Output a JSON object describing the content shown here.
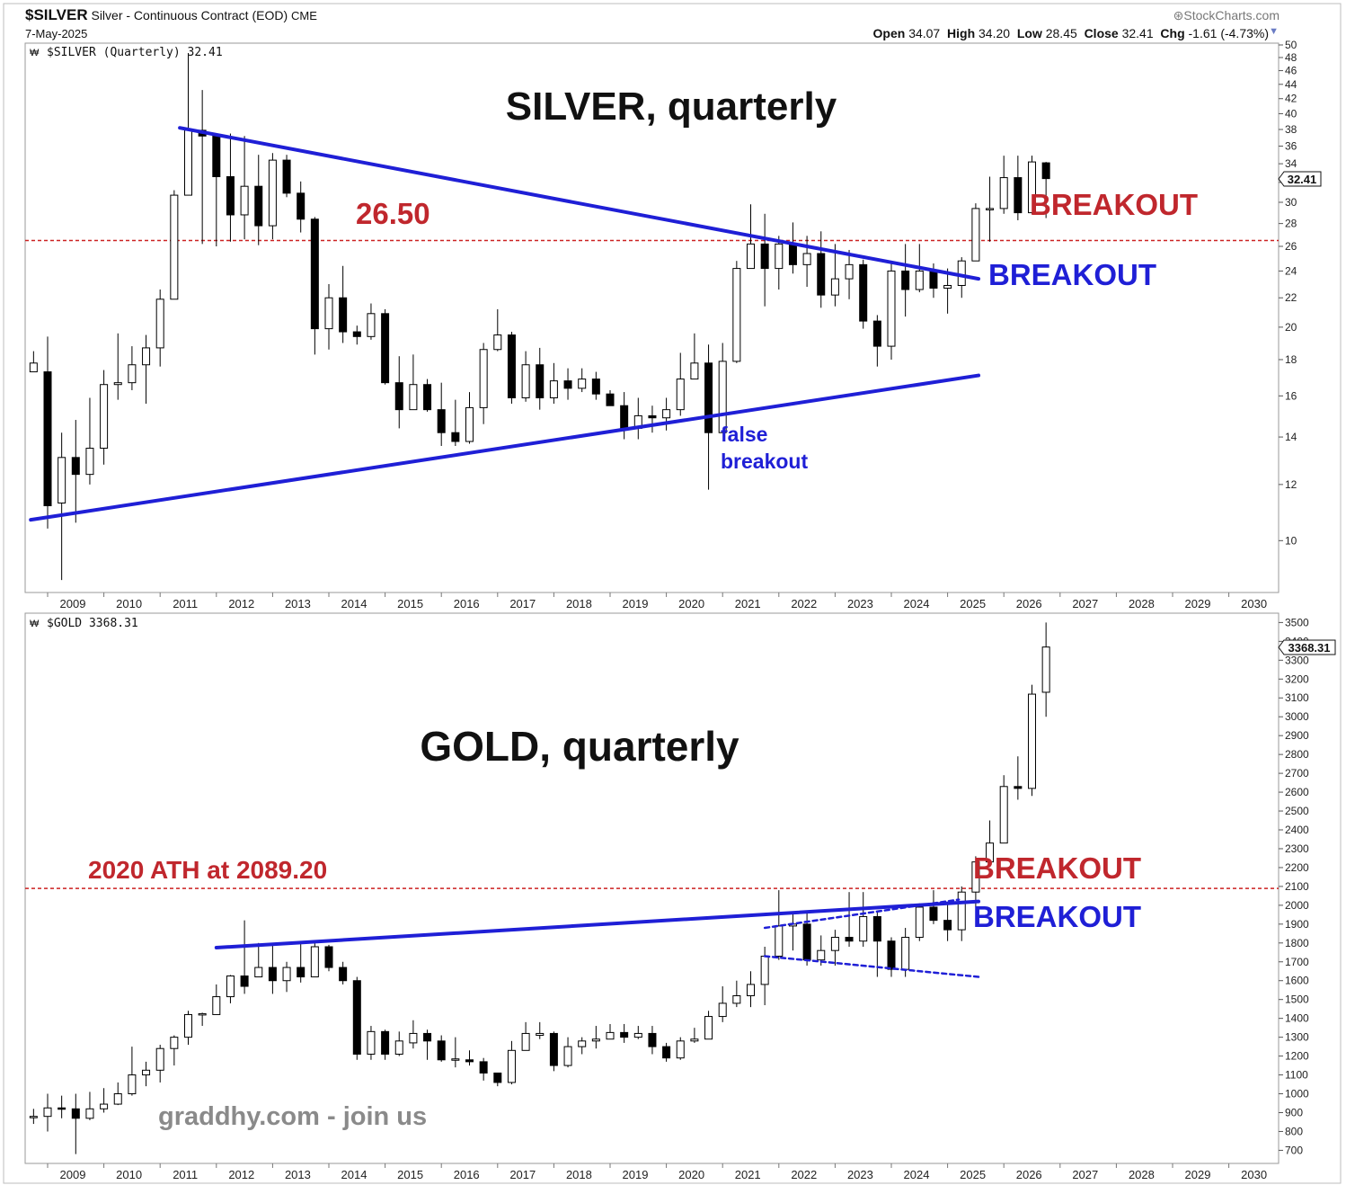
{
  "header": {
    "symbol": "$SILVER",
    "description": "Silver - Continuous Contract (EOD)",
    "exchange": "CME",
    "date": "7-May-2025",
    "brand": "StockCharts.com",
    "open_label": "Open",
    "open": "34.07",
    "high_label": "High",
    "high": "34.20",
    "low_label": "Low",
    "low": "28.45",
    "close_label": "Close",
    "close": "32.41",
    "chg_label": "Chg",
    "chg": "-1.61 (-4.73%)"
  },
  "colors": {
    "up_body": "#ffffff",
    "down_body": "#000000",
    "trendline": "#1f1fd6",
    "level_line": "#cc2222",
    "breakout_red": "#c0272d",
    "breakout_blue": "#1f1fd6",
    "frame": "#c8c8c8",
    "watermark": "#8a8a8a"
  },
  "x_axis_years": [
    "2009",
    "2010",
    "2011",
    "2012",
    "2013",
    "2014",
    "2015",
    "2016",
    "2017",
    "2018",
    "2019",
    "2020",
    "2021",
    "2022",
    "2023",
    "2024",
    "2025",
    "2026",
    "2027",
    "2028",
    "2029",
    "2030"
  ],
  "chart_data": [
    {
      "type": "candlestick",
      "panel": "silver",
      "legend": "$SILVER (Quarterly) 32.41",
      "title": "SILVER, quarterly",
      "last_value": "32.41",
      "yscale": "log",
      "ylim": [
        8.5,
        50
      ],
      "yticks": [
        10,
        12,
        14,
        16,
        18,
        20,
        22,
        24,
        26,
        28,
        30,
        32,
        34,
        36,
        38,
        40,
        42,
        44,
        46,
        48,
        50
      ],
      "candles": [
        [
          2008.75,
          17.3,
          17.8,
          17.3,
          18.5
        ],
        [
          2009.0,
          17.3,
          11.2,
          19.4,
          10.4
        ],
        [
          2009.25,
          11.3,
          13.1,
          14.2,
          8.8
        ],
        [
          2009.5,
          13.1,
          12.4,
          14.8,
          10.6
        ],
        [
          2009.75,
          12.4,
          13.5,
          15.9,
          12.0
        ],
        [
          2010.0,
          13.5,
          16.6,
          17.4,
          12.8
        ],
        [
          2010.25,
          16.6,
          16.7,
          19.6,
          15.8
        ],
        [
          2010.5,
          16.7,
          17.7,
          18.8,
          16.3
        ],
        [
          2010.75,
          17.7,
          18.7,
          19.5,
          15.6
        ],
        [
          2011.0,
          18.7,
          21.9,
          22.6,
          17.6
        ],
        [
          2011.25,
          21.9,
          30.7,
          31.2,
          21.9
        ],
        [
          2011.5,
          30.7,
          37.9,
          48.7,
          31.0
        ],
        [
          2011.75,
          37.9,
          37.2,
          43.2,
          26.2
        ],
        [
          2012.0,
          37.2,
          32.6,
          35.3,
          26.0
        ],
        [
          2012.25,
          32.6,
          28.8,
          37.5,
          26.4
        ],
        [
          2012.5,
          28.8,
          31.6,
          37.2,
          26.6
        ],
        [
          2012.75,
          31.6,
          27.8,
          35.0,
          26.1
        ],
        [
          2013.0,
          27.8,
          34.4,
          35.2,
          26.6
        ],
        [
          2013.25,
          34.4,
          30.9,
          35.0,
          30.5
        ],
        [
          2013.5,
          30.9,
          28.4,
          32.1,
          27.2
        ],
        [
          2013.75,
          28.4,
          19.9,
          28.6,
          18.3
        ],
        [
          2014.0,
          19.9,
          22.0,
          23.0,
          18.6
        ],
        [
          2014.25,
          22.0,
          19.7,
          24.4,
          19.0
        ],
        [
          2014.5,
          19.7,
          19.4,
          20.1,
          18.9
        ],
        [
          2014.75,
          19.4,
          20.9,
          21.6,
          19.2
        ],
        [
          2015.0,
          20.9,
          16.7,
          21.2,
          16.6
        ],
        [
          2015.25,
          16.7,
          15.3,
          18.2,
          14.4
        ],
        [
          2015.5,
          15.3,
          16.6,
          18.3,
          15.3
        ],
        [
          2015.75,
          16.6,
          15.3,
          16.9,
          15.2
        ],
        [
          2016.0,
          15.3,
          14.2,
          16.7,
          13.6
        ],
        [
          2016.25,
          14.2,
          13.8,
          15.8,
          13.6
        ],
        [
          2016.5,
          13.8,
          15.4,
          16.2,
          13.7
        ],
        [
          2016.75,
          15.4,
          18.6,
          19.0,
          14.6
        ],
        [
          2017.0,
          18.6,
          19.5,
          21.2,
          18.5
        ],
        [
          2017.25,
          19.5,
          15.9,
          19.7,
          15.6
        ],
        [
          2017.5,
          15.9,
          17.7,
          18.5,
          15.7
        ],
        [
          2017.75,
          17.7,
          15.9,
          18.7,
          15.3
        ],
        [
          2018.0,
          15.9,
          16.8,
          17.8,
          15.6
        ],
        [
          2018.25,
          16.8,
          16.4,
          17.5,
          15.8
        ],
        [
          2018.5,
          16.4,
          16.9,
          17.5,
          16.2
        ],
        [
          2018.75,
          16.9,
          16.1,
          17.3,
          15.8
        ],
        [
          2019.0,
          16.1,
          15.5,
          16.3,
          15.5
        ],
        [
          2019.25,
          15.5,
          14.4,
          16.2,
          13.9
        ],
        [
          2019.5,
          14.4,
          15.0,
          15.9,
          13.9
        ],
        [
          2019.75,
          15.0,
          14.9,
          15.5,
          14.2
        ],
        [
          2020.0,
          14.9,
          15.3,
          15.9,
          14.3
        ],
        [
          2020.25,
          15.3,
          16.9,
          18.4,
          15.0
        ],
        [
          2020.5,
          16.9,
          17.8,
          19.6,
          16.9
        ],
        [
          2020.75,
          17.8,
          14.2,
          18.9,
          11.8
        ],
        [
          2021.0,
          14.2,
          17.9,
          19.0,
          14.2
        ],
        [
          2021.25,
          17.9,
          24.2,
          24.8,
          17.8
        ],
        [
          2021.5,
          24.2,
          26.2,
          29.8,
          24.2
        ],
        [
          2021.75,
          26.2,
          24.2,
          28.9,
          21.4
        ],
        [
          2022.0,
          24.2,
          26.2,
          26.9,
          22.6
        ],
        [
          2022.25,
          26.2,
          24.5,
          28.1,
          23.8
        ],
        [
          2022.5,
          24.5,
          25.4,
          26.9,
          22.8
        ],
        [
          2022.75,
          25.4,
          22.2,
          27.3,
          21.3
        ],
        [
          2023.0,
          22.2,
          23.4,
          26.2,
          21.4
        ],
        [
          2023.25,
          23.4,
          24.5,
          25.7,
          21.9
        ],
        [
          2023.5,
          24.5,
          20.4,
          24.9,
          19.9
        ],
        [
          2023.75,
          20.4,
          18.8,
          20.8,
          17.6
        ],
        [
          2024.0,
          18.8,
          24.0,
          24.6,
          18.0
        ],
        [
          2024.25,
          24.0,
          22.6,
          26.2,
          20.7
        ],
        [
          2024.5,
          22.6,
          24.0,
          26.2,
          22.4
        ],
        [
          2024.75,
          24.0,
          22.7,
          24.6,
          22.0
        ],
        [
          2025.0,
          22.7,
          22.9,
          24.2,
          20.9
        ],
        [
          2025.25,
          22.9,
          24.8,
          25.1,
          22.0
        ],
        [
          2025.5,
          24.8,
          29.4,
          29.9,
          24.8
        ],
        [
          2025.75,
          29.4,
          29.4,
          32.6,
          26.4
        ],
        [
          2026.0,
          29.4,
          32.5,
          34.9,
          28.9
        ],
        [
          2026.25,
          32.5,
          29.0,
          34.9,
          28.3
        ],
        [
          2026.5,
          29.0,
          34.2,
          34.9,
          28.9
        ],
        [
          2026.75,
          34.1,
          32.4,
          34.2,
          28.5
        ]
      ],
      "annotations": {
        "level_label": "26.50",
        "level_value": 26.5,
        "breakout_red": "BREAKOUT",
        "breakout_blue": "BREAKOUT",
        "false_breakout_1": "false",
        "false_breakout_2": "breakout"
      },
      "trendlines": [
        {
          "name": "upper",
          "from": [
            2011.35,
            38.2
          ],
          "to": [
            2025.55,
            23.4
          ]
        },
        {
          "name": "lower",
          "from": [
            2008.7,
            10.7
          ],
          "to": [
            2025.55,
            17.1
          ]
        }
      ]
    },
    {
      "type": "candlestick",
      "panel": "gold",
      "legend": "$GOLD 3368.31",
      "title": "GOLD, quarterly",
      "last_value": "3368.31",
      "yscale": "linear",
      "ylim": [
        640,
        3540
      ],
      "yticks": [
        700,
        800,
        900,
        1000,
        1100,
        1200,
        1300,
        1400,
        1500,
        1600,
        1700,
        1800,
        1900,
        2000,
        2100,
        2200,
        2300,
        2400,
        2500,
        2600,
        2700,
        2800,
        2900,
        3000,
        3100,
        3200,
        3300,
        3400,
        3500
      ],
      "candles": [
        [
          2008.75,
          880,
          880,
          920,
          840
        ],
        [
          2009.0,
          880,
          925,
          1000,
          800
        ],
        [
          2009.25,
          925,
          920,
          990,
          870
        ],
        [
          2009.5,
          920,
          870,
          1000,
          680
        ],
        [
          2009.75,
          870,
          920,
          1010,
          860
        ],
        [
          2010.0,
          920,
          945,
          1030,
          900
        ],
        [
          2010.25,
          945,
          1000,
          1060,
          940
        ],
        [
          2010.5,
          1000,
          1100,
          1250,
          990
        ],
        [
          2010.75,
          1100,
          1125,
          1170,
          1040
        ],
        [
          2011.0,
          1125,
          1240,
          1260,
          1060
        ],
        [
          2011.25,
          1240,
          1300,
          1310,
          1150
        ],
        [
          2011.5,
          1300,
          1420,
          1440,
          1260
        ],
        [
          2011.75,
          1420,
          1425,
          1430,
          1360
        ],
        [
          2012.0,
          1420,
          1515,
          1580,
          1480
        ],
        [
          2012.25,
          1515,
          1625,
          1630,
          1480
        ],
        [
          2012.5,
          1625,
          1570,
          1920,
          1530
        ],
        [
          2012.75,
          1620,
          1670,
          1800,
          1630
        ],
        [
          2013.0,
          1670,
          1600,
          1800,
          1530
        ],
        [
          2013.25,
          1600,
          1670,
          1700,
          1540
        ],
        [
          2013.5,
          1670,
          1620,
          1800,
          1590
        ],
        [
          2013.75,
          1620,
          1780,
          1800,
          1620
        ],
        [
          2014.0,
          1780,
          1670,
          1790,
          1650
        ],
        [
          2014.25,
          1670,
          1600,
          1700,
          1580
        ],
        [
          2014.5,
          1600,
          1210,
          1620,
          1180
        ],
        [
          2014.75,
          1210,
          1330,
          1360,
          1180
        ],
        [
          2015.0,
          1330,
          1210,
          1340,
          1180
        ],
        [
          2015.25,
          1210,
          1280,
          1330,
          1200
        ],
        [
          2015.5,
          1270,
          1320,
          1390,
          1240
        ],
        [
          2015.75,
          1320,
          1280,
          1340,
          1180
        ],
        [
          2016.0,
          1280,
          1180,
          1310,
          1170
        ],
        [
          2016.25,
          1180,
          1185,
          1300,
          1140
        ],
        [
          2016.5,
          1180,
          1170,
          1230,
          1150
        ],
        [
          2016.75,
          1170,
          1110,
          1190,
          1070
        ],
        [
          2017.0,
          1110,
          1060,
          1110,
          1040
        ],
        [
          2017.25,
          1060,
          1230,
          1280,
          1050
        ],
        [
          2017.5,
          1230,
          1320,
          1380,
          1230
        ],
        [
          2017.75,
          1310,
          1320,
          1380,
          1290
        ],
        [
          2018.0,
          1320,
          1150,
          1330,
          1120
        ],
        [
          2018.25,
          1150,
          1250,
          1300,
          1140
        ],
        [
          2018.5,
          1250,
          1280,
          1300,
          1210
        ],
        [
          2018.75,
          1280,
          1290,
          1360,
          1240
        ],
        [
          2019.0,
          1290,
          1325,
          1370,
          1300
        ],
        [
          2019.25,
          1325,
          1300,
          1370,
          1270
        ],
        [
          2019.5,
          1300,
          1320,
          1360,
          1290
        ],
        [
          2019.75,
          1320,
          1250,
          1360,
          1210
        ],
        [
          2020.0,
          1250,
          1190,
          1270,
          1170
        ],
        [
          2020.25,
          1190,
          1280,
          1300,
          1180
        ],
        [
          2020.5,
          1280,
          1290,
          1350,
          1270
        ],
        [
          2020.75,
          1290,
          1410,
          1440,
          1300
        ],
        [
          2021.0,
          1410,
          1480,
          1570,
          1380
        ],
        [
          2021.25,
          1480,
          1520,
          1600,
          1460
        ],
        [
          2021.5,
          1520,
          1580,
          1650,
          1460
        ],
        [
          2021.75,
          1580,
          1730,
          1780,
          1470
        ],
        [
          2022.0,
          1730,
          1890,
          2080,
          1710
        ],
        [
          2022.25,
          1890,
          1900,
          1960,
          1760
        ],
        [
          2022.5,
          1900,
          1710,
          1960,
          1680
        ],
        [
          2022.75,
          1710,
          1760,
          1840,
          1680
        ],
        [
          2023.0,
          1760,
          1830,
          1870,
          1680
        ],
        [
          2023.25,
          1830,
          1810,
          2070,
          1780
        ],
        [
          2023.5,
          1810,
          1940,
          2070,
          1780
        ],
        [
          2023.75,
          1940,
          1810,
          1970,
          1620
        ],
        [
          2024.0,
          1810,
          1660,
          1830,
          1620
        ],
        [
          2024.25,
          1660,
          1830,
          1880,
          1620
        ],
        [
          2024.5,
          1830,
          1990,
          2010,
          1810
        ],
        [
          2024.75,
          1990,
          1920,
          2080,
          1900
        ],
        [
          2025.0,
          1920,
          1870,
          2010,
          1810
        ],
        [
          2025.25,
          1870,
          2070,
          2100,
          1810
        ],
        [
          2025.5,
          2070,
          2230,
          2260,
          1990
        ],
        [
          2025.75,
          2230,
          2330,
          2450,
          2290
        ],
        [
          2026.0,
          2330,
          2630,
          2690,
          2350
        ],
        [
          2026.25,
          2630,
          2620,
          2790,
          2560
        ],
        [
          2026.5,
          2620,
          3120,
          3170,
          2580
        ],
        [
          2026.75,
          3130,
          3370,
          3500,
          3000
        ]
      ],
      "annotations": {
        "ath_label": "2020 ATH at 2089.20",
        "ath_value": 2089.2,
        "breakout_red": "BREAKOUT",
        "breakout_blue": "BREAKOUT",
        "watermark": "graddhy.com - join us"
      },
      "trendlines": [
        {
          "name": "resistance",
          "from": [
            2012.0,
            1775
          ],
          "to": [
            2025.55,
            2020
          ]
        },
        {
          "name": "flag_top",
          "from": [
            2021.75,
            1880
          ],
          "to": [
            2025.2,
            2030
          ]
        },
        {
          "name": "flag_bottom",
          "from": [
            2021.75,
            1730
          ],
          "to": [
            2025.55,
            1620
          ]
        }
      ]
    }
  ]
}
